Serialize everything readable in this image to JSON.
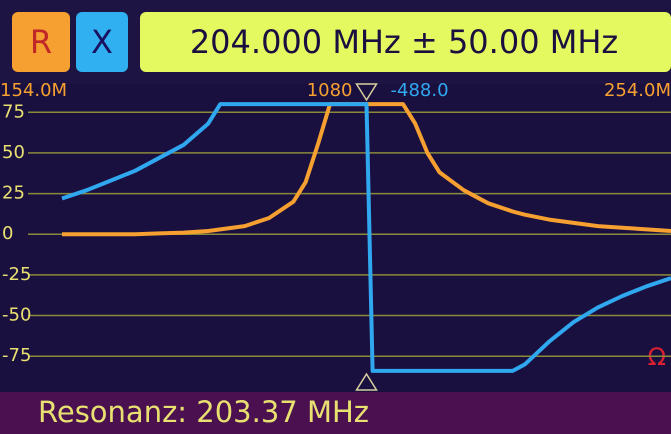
{
  "chart_data": {
    "type": "line",
    "title": "204.000 MHz ± 50.00 MHz",
    "footer": "Resonanz: 203.37 MHz",
    "unit": "Ω",
    "marker_x": 204,
    "marker_labels": [
      "1080",
      "-488.0"
    ],
    "x": [
      154,
      158,
      162,
      166,
      170,
      174,
      178,
      180,
      184,
      188,
      192,
      194,
      196,
      198,
      200,
      202,
      204,
      205,
      206,
      208,
      210,
      212,
      214,
      216,
      220,
      224,
      228,
      230,
      234,
      238,
      242,
      246,
      250,
      254
    ],
    "series": [
      {
        "name": "R",
        "color": "#f5a030",
        "values": [
          0,
          0,
          0,
          0,
          0.5,
          1,
          2,
          3,
          5,
          10,
          20,
          32,
          55,
          80,
          80,
          80,
          80,
          80,
          80,
          80,
          80,
          68,
          50,
          38,
          27,
          19,
          14,
          12,
          9,
          7,
          5,
          4,
          3,
          2
        ]
      },
      {
        "name": "X",
        "color": "#30a8f0",
        "values": [
          22,
          27,
          33,
          39,
          47,
          55,
          68,
          80,
          80,
          80,
          80,
          80,
          80,
          80,
          80,
          80,
          80,
          -84,
          -84,
          -84,
          -84,
          -84,
          -84,
          -84,
          -84,
          -84,
          -84,
          -80,
          -66,
          -54,
          -45,
          -38,
          -32,
          -27
        ]
      }
    ],
    "xlim": [
      154,
      254
    ],
    "xticks": [
      {
        "value": 154,
        "label": "154.0M"
      },
      {
        "value": 254,
        "label": "254.0M"
      }
    ],
    "ylim": [
      -97,
      85
    ],
    "yticks": [
      75,
      50,
      25,
      0,
      -25,
      -50,
      -75
    ],
    "grid": true
  }
}
